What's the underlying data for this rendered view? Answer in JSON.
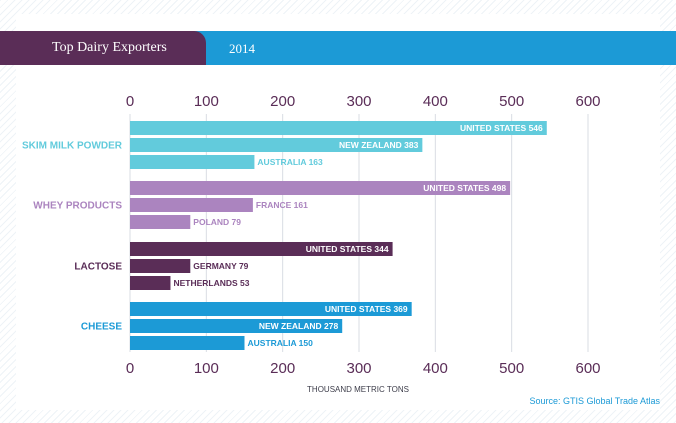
{
  "header": {
    "title": "Top Dairy Exporters",
    "year": "2014"
  },
  "source": "Source: GTIS Global Trade Atlas",
  "chart_data": {
    "type": "bar",
    "orientation": "horizontal",
    "title": "Top Dairy Exporters",
    "subtitle": "2014",
    "xlabel": "THOUSAND METRIC TONS",
    "xlim": [
      0,
      600
    ],
    "xticks": [
      "0",
      "100",
      "200",
      "300",
      "400",
      "500",
      "600"
    ],
    "grid": true,
    "groups": [
      {
        "category": "SKIM MILK POWDER",
        "color": "#62cbdc",
        "bars": [
          {
            "label": "UNITED STATES",
            "value": 546
          },
          {
            "label": "NEW ZEALAND",
            "value": 383
          },
          {
            "label": "AUSTRALIA",
            "value": 163
          }
        ]
      },
      {
        "category": "WHEY PRODUCTS",
        "color": "#ab84bf",
        "bars": [
          {
            "label": "UNITED STATES",
            "value": 498
          },
          {
            "label": "FRANCE",
            "value": 161
          },
          {
            "label": "POLAND",
            "value": 79
          }
        ]
      },
      {
        "category": "LACTOSE",
        "color": "#5a2d57",
        "bars": [
          {
            "label": "UNITED STATES",
            "value": 344
          },
          {
            "label": "GERMANY",
            "value": 79
          },
          {
            "label": "NETHERLANDS",
            "value": 53
          }
        ]
      },
      {
        "category": "CHEESE",
        "color": "#1c9ad6",
        "bars": [
          {
            "label": "UNITED STATES",
            "value": 369
          },
          {
            "label": "NEW ZEALAND",
            "value": 278
          },
          {
            "label": "AUSTRALIA",
            "value": 150
          }
        ]
      }
    ]
  }
}
